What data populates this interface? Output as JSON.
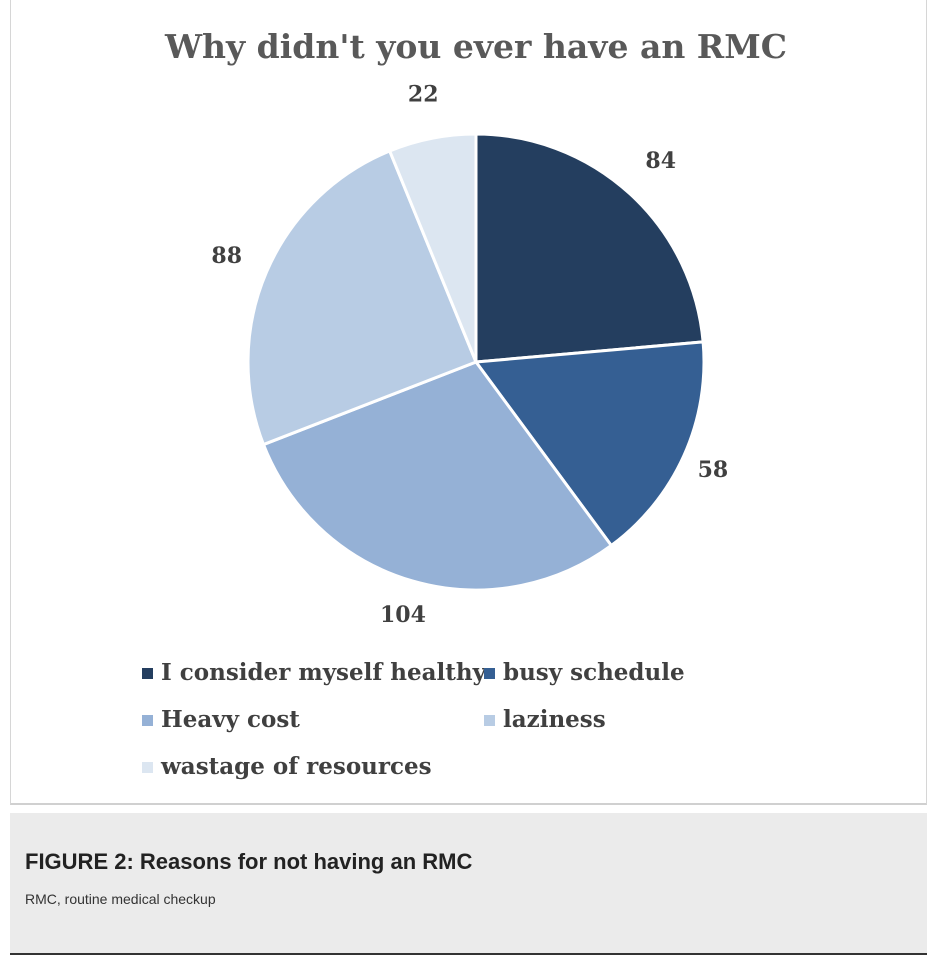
{
  "chart_data": {
    "type": "pie",
    "title": "Why didn't you ever have an RMC",
    "categories": [
      "I consider myself healthy",
      "busy schedule",
      "Heavy cost",
      "laziness",
      "wastage of resources"
    ],
    "values": [
      84,
      58,
      104,
      88,
      22
    ],
    "data_labels": [
      "84",
      "58",
      "104",
      "88",
      "22"
    ],
    "colors": [
      "#243e5f",
      "#355f93",
      "#95b1d6",
      "#b8cce4",
      "#dce6f1"
    ],
    "start_angle_deg": 0,
    "direction": "clockwise",
    "legend_position": "bottom"
  },
  "caption": {
    "title": "FIGURE 2: Reasons for not having an RMC",
    "text": "RMC, routine medical checkup"
  }
}
